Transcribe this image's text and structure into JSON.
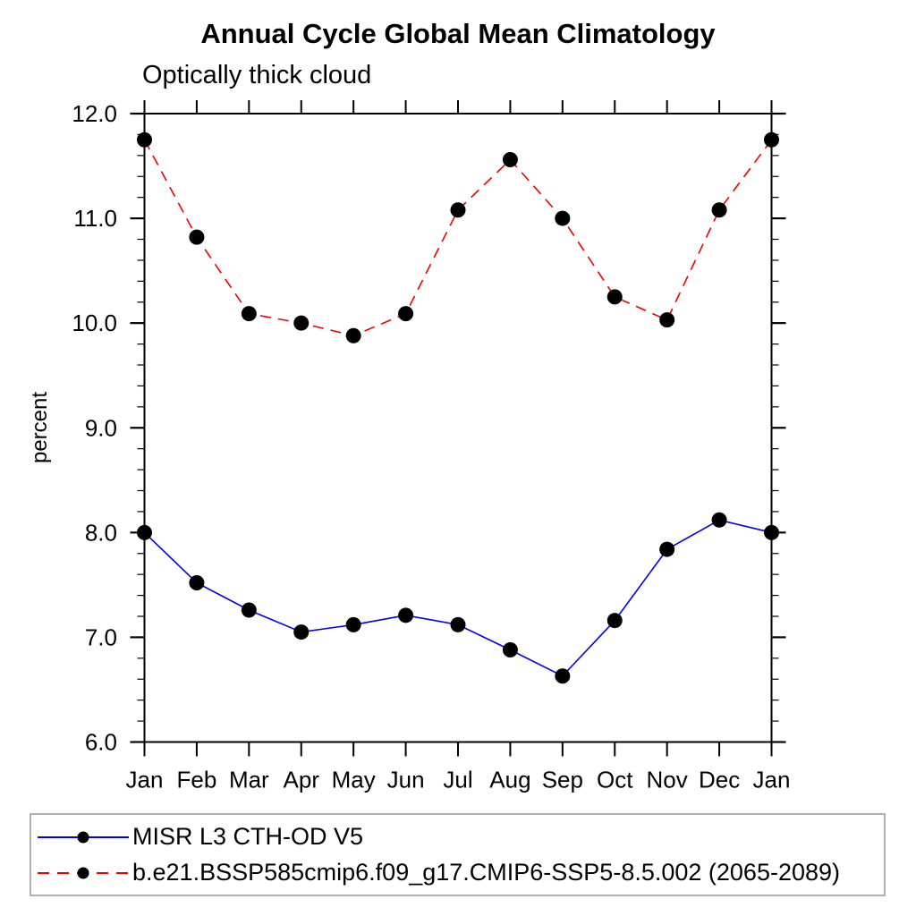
{
  "title": "Annual Cycle Global Mean Climatology",
  "subtitle": "Optically thick cloud",
  "y_axis_label": "percent",
  "legend": {
    "items": [
      {
        "label": "MISR L3 CTH-OD V5",
        "color": "#0000ee",
        "line_style": "solid",
        "marker": "black-dot"
      },
      {
        "label": "b.e21.BSSP585cmip6.f09_g17.CMIP6-SSP5-8.5.002 (2065-2089)",
        "color": "#ee0000",
        "line_style": "dashed",
        "marker": "black-dot"
      }
    ],
    "position": "bottom"
  },
  "chart_data": {
    "type": "line",
    "title": "Annual Cycle Global Mean Climatology",
    "subtitle": "Optically thick cloud",
    "xlabel": "",
    "ylabel": "percent",
    "categories": [
      "Jan",
      "Feb",
      "Mar",
      "Apr",
      "May",
      "Jun",
      "Jul",
      "Aug",
      "Sep",
      "Oct",
      "Nov",
      "Dec",
      "Jan"
    ],
    "ylim": [
      6.0,
      12.0
    ],
    "ytick_major": [
      12.0,
      11.0,
      10.0,
      9.0,
      8.0,
      7.0,
      6.0
    ],
    "ytick_labels": [
      "12.0",
      "11.0",
      "10.0",
      "9.0",
      "8.0",
      "7.0",
      "6.0"
    ],
    "y_minor_step": 0.2,
    "grid": false,
    "legend_position": "bottom",
    "series": [
      {
        "name": "MISR L3 CTH-OD V5",
        "color": "#0000ee",
        "style": "solid",
        "marker": "black-dot",
        "values": [
          8.0,
          7.52,
          7.26,
          7.05,
          7.12,
          7.21,
          7.12,
          6.88,
          6.63,
          7.16,
          7.84,
          8.12,
          8.0
        ]
      },
      {
        "name": "b.e21.BSSP585cmip6.f09_g17.CMIP6-SSP5-8.5.002 (2065-2089)",
        "color": "#ee0000",
        "style": "dashed",
        "marker": "black-dot",
        "values": [
          11.75,
          10.82,
          10.09,
          10.0,
          9.88,
          10.09,
          11.08,
          11.56,
          11.0,
          10.25,
          10.03,
          11.08,
          11.75
        ]
      }
    ]
  }
}
